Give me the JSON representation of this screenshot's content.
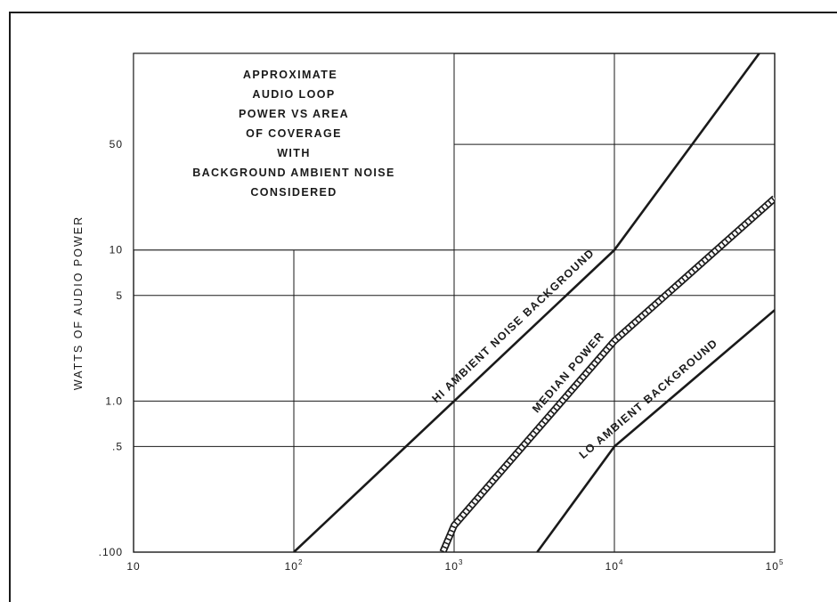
{
  "chart_data": {
    "type": "line",
    "title_lines": [
      "APPROXIMATE",
      "AUDIO LOOP",
      "POWER VS AREA",
      "OF COVERAGE",
      "WITH",
      "BACKGROUND AMBIENT NOISE",
      "CONSIDERED"
    ],
    "xlabel": "",
    "ylabel": "WATTS OF AUDIO POWER",
    "x_scale": "log",
    "y_scale": "log",
    "xlim": [
      10,
      100000
    ],
    "ylim": [
      0.1,
      200
    ],
    "grid": true,
    "x_ticks": [
      {
        "value": 10,
        "base": "10",
        "exp": ""
      },
      {
        "value": 100,
        "base": "10",
        "exp": "2"
      },
      {
        "value": 1000,
        "base": "10",
        "exp": "3"
      },
      {
        "value": 10000,
        "base": "10",
        "exp": "4"
      },
      {
        "value": 100000,
        "base": "10",
        "exp": "5"
      }
    ],
    "y_ticks": [
      {
        "value": 0.1,
        "label": ".100"
      },
      {
        "value": 0.5,
        "label": ".5"
      },
      {
        "value": 1,
        "label": "1.0"
      },
      {
        "value": 5,
        "label": "5"
      },
      {
        "value": 10,
        "label": "10"
      },
      {
        "value": 50,
        "label": "50"
      }
    ],
    "series": [
      {
        "name": "HI AMBIENT NOISE BACKGROUND",
        "style": "solid",
        "points": [
          [
            100,
            0.1
          ],
          [
            1000,
            1.0
          ],
          [
            10000,
            10
          ],
          [
            80000,
            200
          ]
        ]
      },
      {
        "name": "MEDIAN POWER",
        "style": "hatched",
        "points": [
          [
            850,
            0.1
          ],
          [
            1000,
            0.15
          ],
          [
            10000,
            2.5
          ],
          [
            100000,
            22
          ]
        ]
      },
      {
        "name": "LO AMBIENT BACKGROUND",
        "style": "solid",
        "points": [
          [
            3300,
            0.1
          ],
          [
            10000,
            0.5
          ],
          [
            100000,
            4
          ]
        ]
      }
    ]
  },
  "colors": {
    "ink": "#1a1a1a",
    "paper": "#ffffff"
  }
}
